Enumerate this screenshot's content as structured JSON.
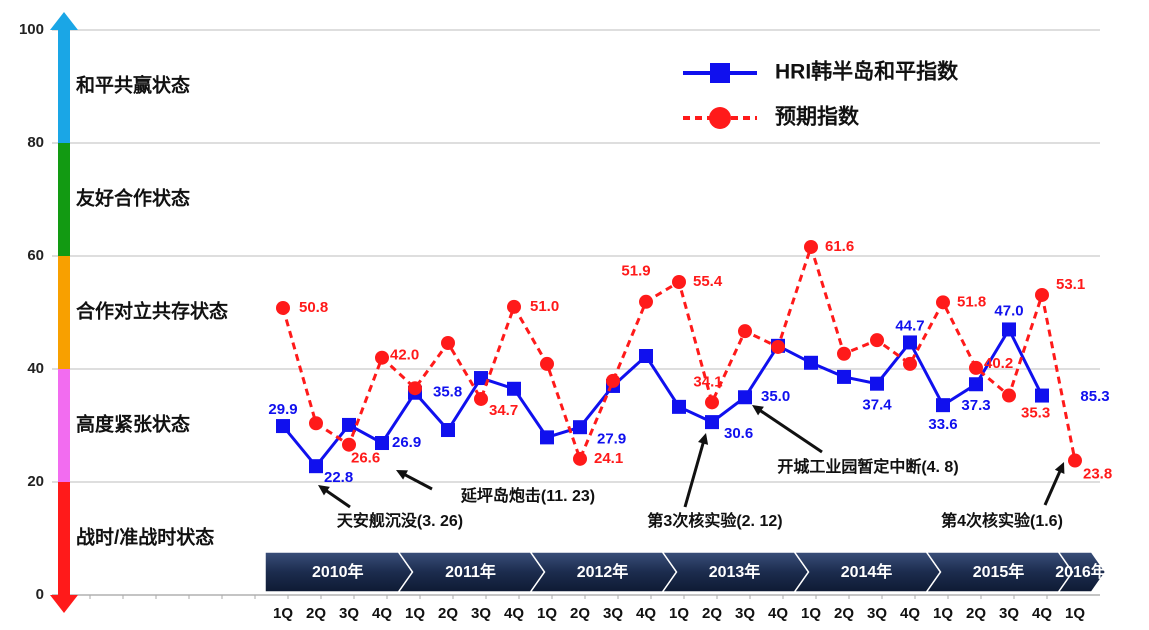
{
  "chart_data": {
    "type": "line",
    "categories": [
      "1Q",
      "2Q",
      "3Q",
      "4Q",
      "1Q",
      "2Q",
      "3Q",
      "4Q",
      "1Q",
      "2Q",
      "3Q",
      "4Q",
      "1Q",
      "2Q",
      "3Q",
      "4Q",
      "1Q",
      "2Q",
      "3Q",
      "4Q",
      "1Q",
      "2Q",
      "3Q",
      "4Q",
      "1Q"
    ],
    "years": [
      "2010年",
      "2011年",
      "2012年",
      "2013年",
      "2014年",
      "2015年",
      "2016年"
    ],
    "ylim": [
      0,
      100
    ],
    "yticks": [
      0,
      20,
      40,
      60,
      80,
      100
    ],
    "grid": true,
    "legend": "top-right",
    "bands": [
      {
        "label": "战时/准战时状态",
        "from": 0,
        "to": 20,
        "color": "#ff1a1a"
      },
      {
        "label": "高度紧张状态",
        "from": 20,
        "to": 40,
        "color": "#f26cf0"
      },
      {
        "label": "合作对立共存状态",
        "from": 40,
        "to": 60,
        "color": "#f8a000"
      },
      {
        "label": "友好合作状态",
        "from": 60,
        "to": 80,
        "color": "#129a12"
      },
      {
        "label": "和平共赢状态",
        "from": 80,
        "to": 100,
        "color": "#1aa6e6"
      }
    ],
    "series": [
      {
        "name": "HRI韩半岛和平指数",
        "color": "#1010ee",
        "values": [
          29.9,
          22.8,
          30.1,
          26.9,
          35.8,
          29.2,
          38.4,
          36.5,
          27.9,
          29.7,
          37.0,
          42.3,
          33.3,
          30.6,
          35.0,
          44.1,
          41.1,
          38.6,
          37.4,
          44.7,
          33.6,
          37.3,
          47.0,
          35.3,
          null
        ],
        "value_labels": [
          "29.9",
          "22.8",
          null,
          "26.9",
          "35.8",
          null,
          null,
          null,
          "27.9",
          null,
          null,
          null,
          null,
          "30.6",
          "35.0",
          null,
          null,
          null,
          "37.4",
          "44.7",
          "33.6",
          "37.3",
          "47.0",
          null,
          null
        ]
      },
      {
        "name": "预期指数",
        "color": "#ff1a1a",
        "values": [
          50.8,
          30.4,
          26.6,
          42.0,
          36.6,
          44.6,
          34.7,
          51.0,
          40.9,
          24.1,
          37.9,
          51.9,
          55.4,
          34.1,
          46.7,
          43.9,
          61.6,
          42.7,
          45.1,
          40.9,
          51.8,
          40.2,
          35.3,
          53.1,
          23.8
        ],
        "value_labels": [
          "50.8",
          null,
          "26.6",
          "42.0",
          null,
          null,
          "34.7",
          "51.0",
          null,
          "24.1",
          null,
          "51.9",
          "55.4",
          "34.1",
          null,
          null,
          "61.6",
          null,
          null,
          null,
          "51.8",
          "40.2",
          "35.3",
          "53.1",
          "23.8"
        ]
      }
    ],
    "annotations": [
      "85.3",
      "天安舰沉没(3. 26)",
      "延坪岛炮击(11. 23)",
      "第3次核实验(2. 12)",
      "开城工业园暂定中断(4. 8)",
      "第4次核实验(1.6)"
    ]
  }
}
